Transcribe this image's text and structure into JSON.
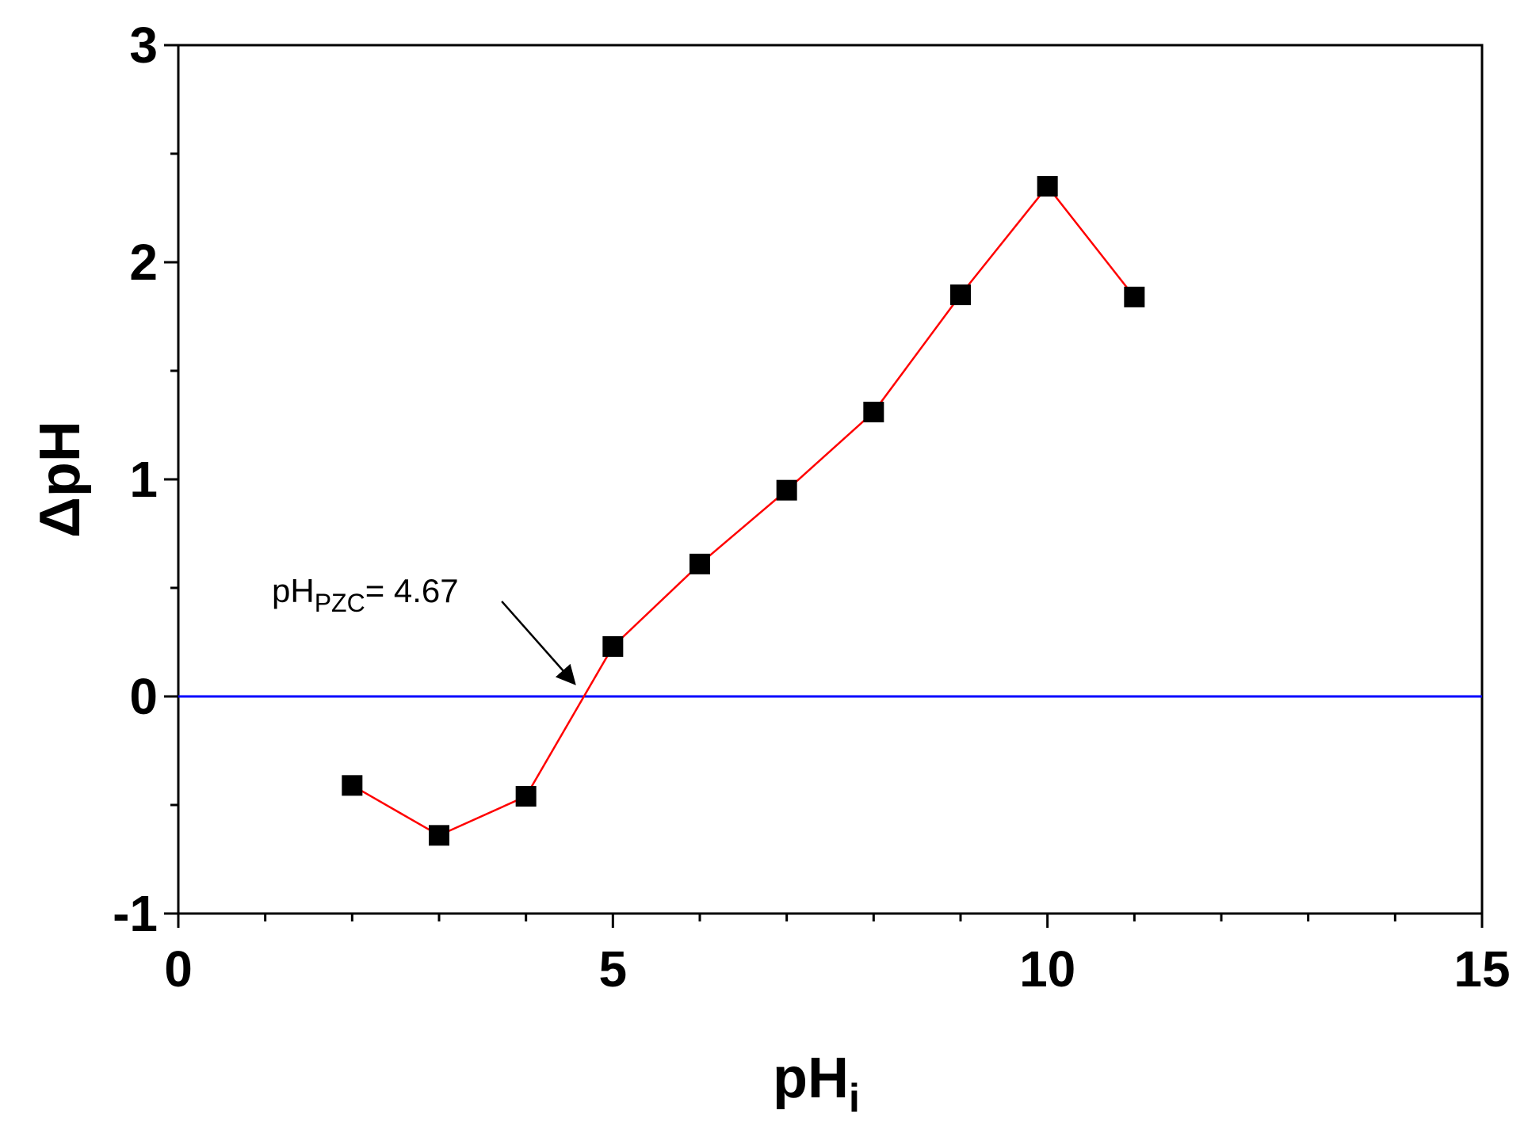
{
  "chart_data": {
    "type": "line",
    "xlabel": {
      "main": "pH",
      "sub": "i"
    },
    "ylabel": "ΔpH",
    "xlim": [
      0,
      15
    ],
    "ylim": [
      -1,
      3
    ],
    "x_ticks": [
      0,
      5,
      10,
      15
    ],
    "x_tick_labels": [
      "0",
      "5",
      "10",
      "15"
    ],
    "y_ticks": [
      -1,
      0,
      1,
      2,
      3
    ],
    "y_tick_labels": [
      "-1",
      "0",
      "1",
      "2",
      "3"
    ],
    "x_minor_step": 1,
    "y_minor_step": 0.5,
    "grid": false,
    "series": [
      {
        "x": [
          2,
          3,
          4,
          5,
          6,
          7,
          8,
          9,
          10,
          11
        ],
        "y": [
          -0.41,
          -0.64,
          -0.46,
          0.23,
          0.61,
          0.95,
          1.31,
          1.85,
          2.35,
          1.84
        ],
        "line_color": "#ff0000",
        "marker_color": "#000000",
        "marker": "square"
      }
    ],
    "reference_line": {
      "y": 0,
      "color": "#0000ff"
    },
    "annotation": {
      "text_main": "pH",
      "text_sub": "PZC",
      "text_value": "= 4.67",
      "x": 4.67,
      "y": 0,
      "arrow_color": "#000000"
    }
  }
}
